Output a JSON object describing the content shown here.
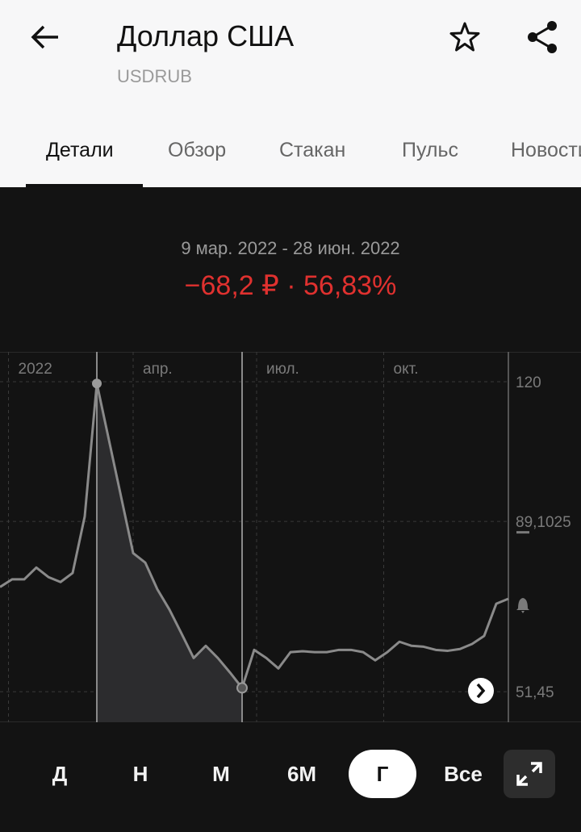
{
  "header": {
    "title": "Доллар США",
    "subtitle": "USDRUB"
  },
  "tabs": [
    "Детали",
    "Обзор",
    "Стакан",
    "Пульс",
    "Новости"
  ],
  "periods": [
    "Д",
    "Н",
    "М",
    "6М",
    "Г",
    "Все"
  ],
  "chart_data": {
    "type": "line",
    "range_label": "9 мар. 2022 - 28 июн. 2022",
    "change_label": "−68,2 ₽ · 56,83%",
    "color": "#8a8a8a",
    "values": [
      74.6,
      76.3,
      76.3,
      78.9,
      76.8,
      75.7,
      77.7,
      90.2,
      119.6,
      107.1,
      94.6,
      82.1,
      80.0,
      74.1,
      69.6,
      64.3,
      58.9,
      61.6,
      58.9,
      55.7,
      52.3,
      60.7,
      58.9,
      56.6,
      60.2,
      60.4,
      60.2,
      60.2,
      60.7,
      60.7,
      60.2,
      58.4,
      60.2,
      62.5,
      61.6,
      61.4,
      60.7,
      60.5,
      60.9,
      62.0,
      63.8,
      70.9,
      72.0
    ],
    "selected_index_range": [
      8,
      20
    ],
    "xlim": [
      0,
      42
    ],
    "xticks": [
      {
        "value": 0.7,
        "label": "2022"
      },
      {
        "value": 11,
        "label": "апр."
      },
      {
        "value": 21.2,
        "label": "июл."
      },
      {
        "value": 31.7,
        "label": "окт."
      }
    ],
    "ylim": [
      44.7,
      126.6
    ],
    "yticks": [
      120,
      {
        "value": 89.1025,
        "label": "89,1025"
      },
      {
        "value": 51.45,
        "label": "51,45"
      }
    ],
    "grid": true
  }
}
